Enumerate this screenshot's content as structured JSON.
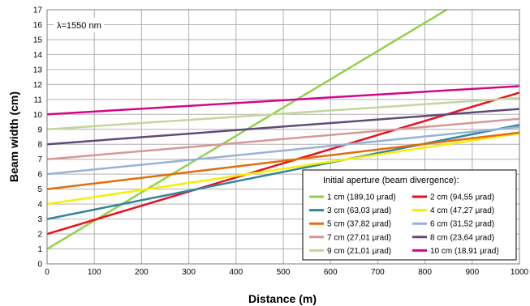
{
  "chart_data": {
    "type": "line",
    "annotation": "λ=1550 nm",
    "xlabel": "Distance (m)",
    "ylabel": "Beam width (cm)",
    "xlim": [
      0,
      1000
    ],
    "ylim": [
      0,
      17
    ],
    "x_ticks": [
      "0",
      "100",
      "200",
      "300",
      "400",
      "500",
      "600",
      "700",
      "800",
      "900",
      "1000"
    ],
    "y_ticks": [
      "0",
      "1",
      "2",
      "3",
      "4",
      "5",
      "6",
      "7",
      "8",
      "9",
      "10",
      "11",
      "12",
      "13",
      "14",
      "15",
      "16",
      "17"
    ],
    "grid": true,
    "legend": {
      "title": "Initial aperture (beam divergence):",
      "placement": "bottom-right"
    },
    "series": [
      {
        "name": "1 cm (189,10 µrad)",
        "color": "#92d050",
        "x": [
          0,
          1000
        ],
        "y": [
          1,
          19.91
        ]
      },
      {
        "name": "2 cm (94,55 µrad)",
        "color": "#e8101c",
        "x": [
          0,
          1000
        ],
        "y": [
          2,
          11.455
        ]
      },
      {
        "name": "3 cm (63,03 µrad)",
        "color": "#31859c",
        "x": [
          0,
          1000
        ],
        "y": [
          3,
          9.303
        ]
      },
      {
        "name": "4 cm (47,27 µrad)",
        "color": "#f5f000",
        "x": [
          0,
          1000
        ],
        "y": [
          4,
          8.727
        ]
      },
      {
        "name": "5 cm (37,82 µrad)",
        "color": "#e46c0a",
        "x": [
          0,
          1000
        ],
        "y": [
          5,
          8.782
        ]
      },
      {
        "name": "6 cm (31,52 µrad)",
        "color": "#95b3d7",
        "x": [
          0,
          1000
        ],
        "y": [
          6,
          9.152
        ]
      },
      {
        "name": "7 cm (27,01 µrad)",
        "color": "#d99694",
        "x": [
          0,
          1000
        ],
        "y": [
          7,
          9.701
        ]
      },
      {
        "name": "8 cm (23,64 µrad)",
        "color": "#604a7b",
        "x": [
          0,
          1000
        ],
        "y": [
          8,
          10.364
        ]
      },
      {
        "name": "9 cm (21,01 µrad)",
        "color": "#c3d69b",
        "x": [
          0,
          1000
        ],
        "y": [
          9,
          11.101
        ]
      },
      {
        "name": "10 cm (18,91 µrad)",
        "color": "#d4058c",
        "x": [
          0,
          1000
        ],
        "y": [
          10,
          11.891
        ]
      }
    ]
  }
}
